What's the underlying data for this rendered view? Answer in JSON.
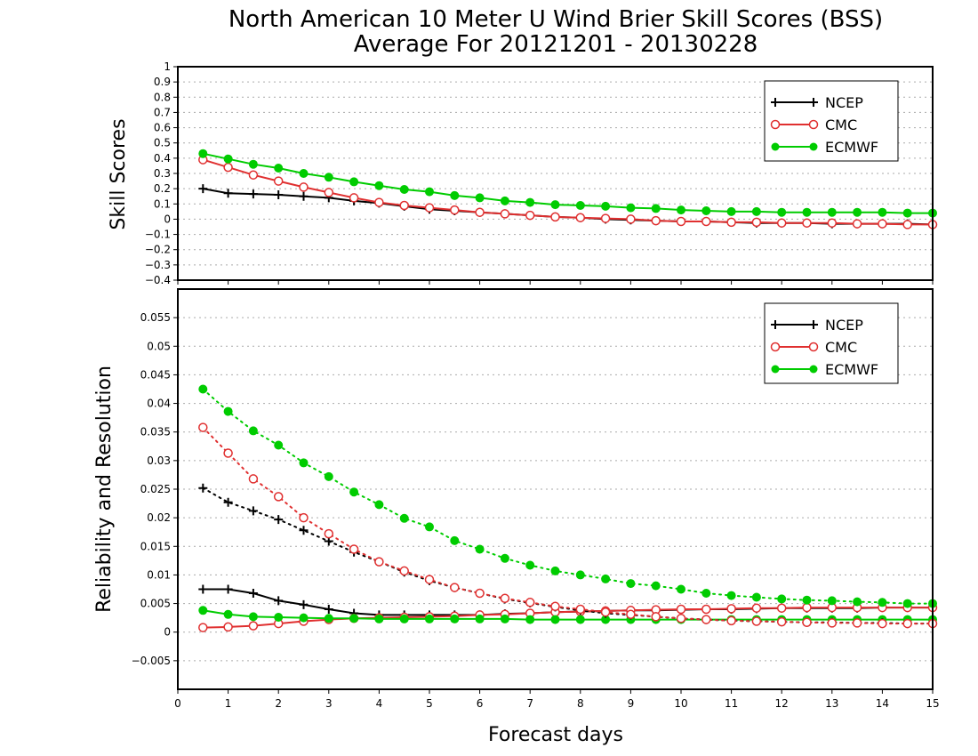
{
  "title_line1": "North American 10 Meter U Wind Brier Skill Scores (BSS)",
  "title_line2": "Average For 20121201 - 20130228",
  "xlabel": "Forecast days",
  "colors": {
    "NCEP": "#000000",
    "CMC": "#e03030",
    "ECMWF": "#00cc00"
  },
  "chart_data": [
    {
      "type": "line",
      "ylabel": "Skill Scores",
      "xlim": [
        0,
        15
      ],
      "ylim": [
        -0.4,
        1
      ],
      "grid": true,
      "legend_placement": "top-right",
      "x_ticks": [
        "0",
        "1",
        "2",
        "3",
        "4",
        "5",
        "6",
        "7",
        "8",
        "9",
        "10",
        "11",
        "12",
        "13",
        "14",
        "15"
      ],
      "y_ticks": [
        "1",
        "0.9",
        "0.8",
        "0.7",
        "0.6",
        "0.5",
        "0.4",
        "0.3",
        "0.2",
        "0.1",
        "0",
        "−0.1",
        "−0.2",
        "−0.3",
        "−0.4"
      ],
      "x": [
        0.5,
        1,
        1.5,
        2,
        2.5,
        3,
        3.5,
        4,
        4.5,
        5,
        5.5,
        6,
        6.5,
        7,
        7.5,
        8,
        8.5,
        9,
        9.5,
        10,
        10.5,
        11,
        11.5,
        12,
        12.5,
        13,
        13.5,
        14,
        14.5,
        15
      ],
      "series": [
        {
          "name": "NCEP",
          "marker": "plus",
          "style": "solid",
          "values": [
            0.2,
            0.17,
            0.165,
            0.16,
            0.15,
            0.14,
            0.12,
            0.105,
            0.085,
            0.065,
            0.055,
            0.045,
            0.035,
            0.025,
            0.015,
            0.01,
            0.0,
            -0.005,
            -0.01,
            -0.015,
            -0.015,
            -0.02,
            -0.025,
            -0.025,
            -0.025,
            -0.03,
            -0.03,
            -0.03,
            -0.03,
            -0.035
          ]
        },
        {
          "name": "CMC",
          "marker": "open-circle",
          "style": "solid",
          "values": [
            0.39,
            0.34,
            0.29,
            0.25,
            0.21,
            0.175,
            0.14,
            0.11,
            0.09,
            0.075,
            0.06,
            0.045,
            0.035,
            0.025,
            0.015,
            0.01,
            0.005,
            0.0,
            -0.01,
            -0.015,
            -0.015,
            -0.02,
            -0.02,
            -0.025,
            -0.025,
            -0.025,
            -0.03,
            -0.03,
            -0.035,
            -0.035
          ]
        },
        {
          "name": "ECMWF",
          "marker": "filled-circle",
          "style": "solid",
          "values": [
            0.43,
            0.395,
            0.36,
            0.335,
            0.3,
            0.275,
            0.245,
            0.22,
            0.195,
            0.18,
            0.155,
            0.14,
            0.12,
            0.11,
            0.095,
            0.09,
            0.085,
            0.075,
            0.07,
            0.06,
            0.055,
            0.05,
            0.05,
            0.045,
            0.045,
            0.045,
            0.045,
            0.045,
            0.04,
            0.04
          ]
        }
      ]
    },
    {
      "type": "line",
      "ylabel": "Reliability and Resolution",
      "xlim": [
        0,
        15
      ],
      "ylim": [
        -0.01,
        0.06
      ],
      "grid": true,
      "legend_placement": "top-right",
      "x_ticks": [
        "0",
        "1",
        "2",
        "3",
        "4",
        "5",
        "6",
        "7",
        "8",
        "9",
        "10",
        "11",
        "12",
        "13",
        "14",
        "15"
      ],
      "y_ticks": [
        "0.055",
        "0.05",
        "0.045",
        "0.04",
        "0.035",
        "0.03",
        "0.025",
        "0.02",
        "0.015",
        "0.01",
        "0.005",
        "0",
        "−0.005"
      ],
      "x": [
        0.5,
        1,
        1.5,
        2,
        2.5,
        3,
        3.5,
        4,
        4.5,
        5,
        5.5,
        6,
        6.5,
        7,
        7.5,
        8,
        8.5,
        9,
        9.5,
        10,
        10.5,
        11,
        11.5,
        12,
        12.5,
        13,
        13.5,
        14,
        14.5,
        15
      ],
      "series": [
        {
          "name": "NCEP",
          "marker": "plus",
          "style": "solid",
          "values": [
            0.0075,
            0.0075,
            0.0068,
            0.0055,
            0.0048,
            0.004,
            0.0033,
            0.003,
            0.003,
            0.003,
            0.003,
            0.003,
            0.0032,
            0.0033,
            0.0035,
            0.0036,
            0.0037,
            0.0038,
            0.0038,
            0.0039,
            0.004,
            0.004,
            0.0041,
            0.0042,
            0.0042,
            0.0042,
            0.0042,
            0.0043,
            0.0043,
            0.0043
          ]
        },
        {
          "name": "CMC",
          "marker": "open-circle",
          "style": "solid",
          "values": [
            0.0008,
            0.0009,
            0.0011,
            0.0015,
            0.0019,
            0.0022,
            0.0024,
            0.0025,
            0.0026,
            0.0027,
            0.0028,
            0.003,
            0.0031,
            0.0033,
            0.0035,
            0.0036,
            0.0037,
            0.0038,
            0.0039,
            0.004,
            0.004,
            0.0041,
            0.0042,
            0.0042,
            0.0043,
            0.0043,
            0.0043,
            0.0043,
            0.0043,
            0.0043
          ]
        },
        {
          "name": "ECMWF",
          "marker": "filled-circle",
          "style": "solid",
          "values": [
            0.0038,
            0.0031,
            0.0027,
            0.0026,
            0.0025,
            0.0024,
            0.0024,
            0.0023,
            0.0023,
            0.0023,
            0.0023,
            0.0023,
            0.0023,
            0.0022,
            0.0022,
            0.0022,
            0.0022,
            0.0022,
            0.0022,
            0.0022,
            0.0022,
            0.0022,
            0.0022,
            0.0022,
            0.0022,
            0.0022,
            0.0022,
            0.0022,
            0.0022,
            0.0022
          ]
        },
        {
          "name": "NCEP",
          "marker": "plus",
          "style": "dotted",
          "values": [
            0.0252,
            0.0227,
            0.0212,
            0.0197,
            0.0178,
            0.0159,
            0.014,
            0.0123,
            0.0105,
            0.009,
            0.0078,
            0.0068,
            0.0058,
            0.0051,
            0.0044,
            0.0038,
            0.0033,
            0.003,
            0.0027,
            0.0024,
            0.0022,
            0.002,
            0.0019,
            0.0018,
            0.0017,
            0.0017,
            0.0016,
            0.0016,
            0.0015,
            0.0015
          ]
        },
        {
          "name": "CMC",
          "marker": "open-circle",
          "style": "dotted",
          "values": [
            0.0358,
            0.0313,
            0.0268,
            0.0237,
            0.02,
            0.0172,
            0.0145,
            0.0123,
            0.0107,
            0.0092,
            0.0078,
            0.0068,
            0.0059,
            0.0052,
            0.0045,
            0.004,
            0.0035,
            0.0031,
            0.0027,
            0.0024,
            0.0022,
            0.002,
            0.0019,
            0.0018,
            0.0017,
            0.0016,
            0.0016,
            0.0015,
            0.0015,
            0.0015
          ]
        },
        {
          "name": "ECMWF",
          "marker": "filled-circle",
          "style": "dotted",
          "values": [
            0.0425,
            0.0386,
            0.0352,
            0.0327,
            0.0296,
            0.0272,
            0.0245,
            0.0223,
            0.0199,
            0.0184,
            0.016,
            0.0145,
            0.0129,
            0.0117,
            0.0107,
            0.01,
            0.0093,
            0.0085,
            0.0081,
            0.0075,
            0.0068,
            0.0064,
            0.0061,
            0.0058,
            0.0056,
            0.0055,
            0.0053,
            0.0052,
            0.005,
            0.005
          ]
        }
      ]
    }
  ]
}
